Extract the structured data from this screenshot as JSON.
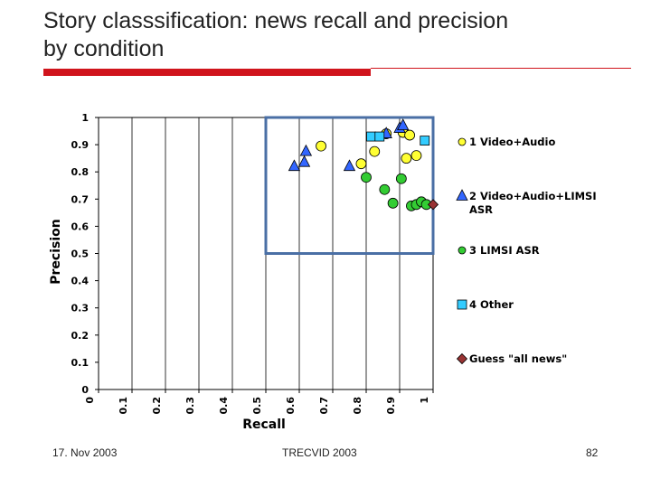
{
  "slide": {
    "title_line1": "Story classsification: news recall and precision",
    "title_line2": "by condition"
  },
  "footer": {
    "date": "17. Nov 2003",
    "center": "TRECVID 2003",
    "page": "82"
  },
  "colors": {
    "accent_red": "#d0141c",
    "highlight_box": "#4a6fa5",
    "grid": "#000000"
  },
  "chart_data": {
    "type": "scatter",
    "xlabel": "Recall",
    "ylabel": "Precision",
    "xlim": [
      0,
      1
    ],
    "ylim": [
      0,
      1
    ],
    "x_ticks": [
      "0",
      "0.1",
      "0.2",
      "0.3",
      "0.4",
      "0.5",
      "0.6",
      "0.7",
      "0.8",
      "0.9",
      "1"
    ],
    "y_ticks": [
      "0",
      "0.1",
      "0.2",
      "0.3",
      "0.4",
      "0.5",
      "0.6",
      "0.7",
      "0.8",
      "0.9",
      "1"
    ],
    "grid": "vertical",
    "legend_position": "right",
    "highlight_region": {
      "x": [
        0.5,
        1.0
      ],
      "y": [
        0.5,
        1.0
      ]
    },
    "series": [
      {
        "name": "1 Video+Audio",
        "marker": "circle",
        "color": "#ffff33",
        "points": [
          [
            0.665,
            0.895
          ],
          [
            0.785,
            0.83
          ],
          [
            0.825,
            0.875
          ],
          [
            0.86,
            0.94
          ],
          [
            0.91,
            0.945
          ],
          [
            0.93,
            0.935
          ],
          [
            0.92,
            0.85
          ],
          [
            0.95,
            0.86
          ]
        ]
      },
      {
        "name": "2 Video+Audio+LIMSI ASR",
        "marker": "triangle",
        "color": "#3366ff",
        "points": [
          [
            0.585,
            0.82
          ],
          [
            0.615,
            0.835
          ],
          [
            0.62,
            0.875
          ],
          [
            0.75,
            0.82
          ],
          [
            0.86,
            0.94
          ],
          [
            0.9,
            0.96
          ],
          [
            0.91,
            0.97
          ]
        ]
      },
      {
        "name": "3 LIMSI ASR",
        "marker": "circle",
        "color": "#33cc33",
        "points": [
          [
            0.8,
            0.78
          ],
          [
            0.855,
            0.735
          ],
          [
            0.88,
            0.685
          ],
          [
            0.905,
            0.775
          ],
          [
            0.935,
            0.675
          ],
          [
            0.95,
            0.68
          ],
          [
            0.965,
            0.69
          ],
          [
            0.98,
            0.68
          ]
        ]
      },
      {
        "name": "4 Other",
        "marker": "square",
        "color": "#33ccff",
        "points": [
          [
            0.815,
            0.93
          ],
          [
            0.84,
            0.93
          ],
          [
            0.975,
            0.915
          ]
        ]
      },
      {
        "name": "Guess \"all news\"",
        "marker": "diamond",
        "color": "#993333",
        "points": [
          [
            1.0,
            0.68
          ]
        ]
      }
    ]
  }
}
